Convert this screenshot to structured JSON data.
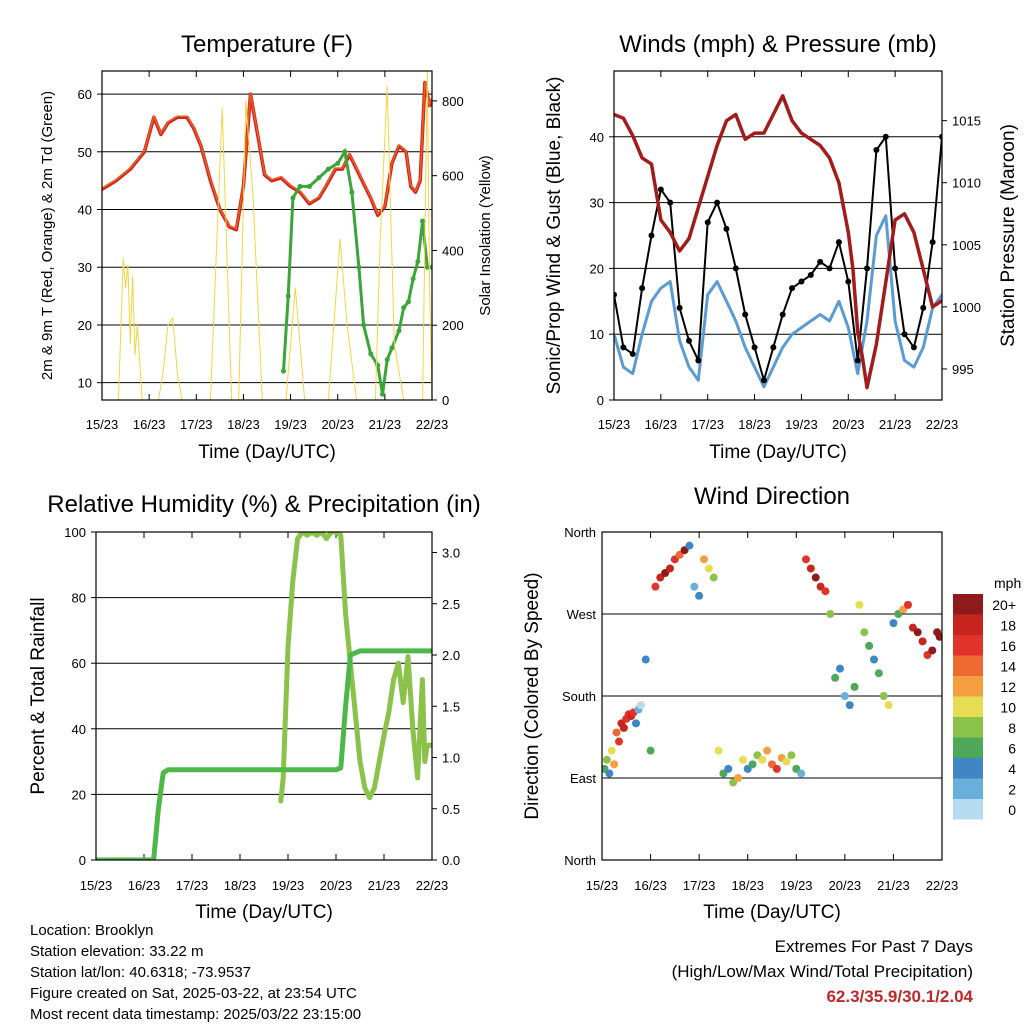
{
  "chart_data": [
    {
      "type": "line",
      "title": "Temperature (F)",
      "xlabel": "Time (Day/UTC)",
      "ylabel": "2m & 9m T (Red, Orange) & 2m Td (Green)",
      "ylabel_right": "Solar Insolation (Yellow)",
      "categories": [
        "15/23",
        "16/23",
        "17/23",
        "18/23",
        "19/23",
        "20/23",
        "21/23",
        "22/23"
      ],
      "yticks_left": [
        "10",
        "20",
        "30",
        "40",
        "50",
        "60"
      ],
      "yticks_right": [
        "0",
        "200",
        "400",
        "600",
        "800"
      ],
      "ylim": [
        7,
        64
      ],
      "ylim_right": [
        0,
        880
      ],
      "colors": {
        "temp2m": "#d62020",
        "temp9m": "#f08c1e",
        "dewpoint": "#3aa638",
        "solar": "#f5d442"
      },
      "series": [
        {
          "key": "temp2m",
          "x": [
            0,
            0.3,
            0.6,
            0.9,
            1.1,
            1.25,
            1.4,
            1.6,
            1.8,
            1.95,
            2.1,
            2.3,
            2.5,
            2.7,
            2.85,
            3,
            3.15,
            3.3,
            3.45,
            3.6,
            3.8,
            4,
            4.2,
            4.4,
            4.6,
            4.75,
            4.95,
            5.1,
            5.25,
            5.4,
            5.55,
            5.7,
            5.85,
            6,
            6.15,
            6.3,
            6.45,
            6.55,
            6.65,
            6.75,
            6.85,
            6.95,
            7
          ],
          "y": [
            43.5,
            45,
            47,
            50,
            56,
            53,
            55,
            56,
            56,
            54,
            51,
            45,
            40,
            37,
            36.5,
            44,
            60,
            53,
            46,
            45,
            45.5,
            44,
            43,
            41,
            42,
            44,
            47,
            47,
            49.5,
            47,
            44.5,
            42,
            39,
            40.5,
            48,
            51,
            50,
            44,
            43,
            45,
            62,
            58,
            59
          ]
        },
        {
          "key": "dewpoint",
          "x": [
            3.85,
            3.95,
            4.05,
            4.2,
            4.4,
            4.6,
            4.8,
            5,
            5.15,
            5.3,
            5.45,
            5.55,
            5.7,
            5.85,
            5.95,
            6.05,
            6.15,
            6.3,
            6.4,
            6.5,
            6.6,
            6.7,
            6.8,
            6.9,
            7
          ],
          "y": [
            12,
            25,
            42,
            44,
            44,
            45.5,
            47,
            48,
            50,
            43,
            30,
            20,
            15,
            13,
            8,
            14,
            16,
            19,
            23,
            24,
            28,
            31,
            38,
            30,
            30
          ]
        },
        {
          "key": "solar",
          "x": [
            0.35,
            0.45,
            0.5,
            0.55,
            0.6,
            0.65,
            0.7,
            0.75,
            0.85,
            1.2,
            1.3,
            1.4,
            1.5,
            1.6,
            1.7,
            2.3,
            2.55,
            2.75,
            2.9,
            3.05,
            3.2,
            3.4,
            3.9,
            4.1,
            4.3,
            4.5,
            4.8,
            5.05,
            5.2,
            5.4,
            5.8,
            5.9,
            6.05,
            6.2,
            6.4,
            6.8,
            6.9,
            6.95,
            7
          ],
          "y": [
            0,
            380,
            300,
            360,
            150,
            330,
            120,
            200,
            0,
            0,
            80,
            200,
            220,
            70,
            0,
            0,
            780,
            0,
            0,
            800,
            550,
            0,
            0,
            300,
            0,
            0,
            0,
            430,
            200,
            0,
            0,
            420,
            840,
            150,
            0,
            0,
            880,
            300,
            0
          ]
        }
      ]
    },
    {
      "type": "line",
      "title": "Winds (mph) & Pressure (mb)",
      "xlabel": "Time (Day/UTC)",
      "ylabel": "Sonic/Prop Wind & Gust (Blue, Black)",
      "ylabel_right": "Station Pressure (Maroon)",
      "categories": [
        "15/23",
        "16/23",
        "17/23",
        "18/23",
        "19/23",
        "20/23",
        "21/23",
        "22/23"
      ],
      "yticks_left": [
        "0",
        "10",
        "20",
        "30",
        "40"
      ],
      "yticks_right": [
        "995",
        "1000",
        "1005",
        "1010",
        "1015"
      ],
      "ylim": [
        0,
        50
      ],
      "ylim_right": [
        992.5,
        1019
      ],
      "colors": {
        "wind": "#5b9bd5",
        "gust": "#000000",
        "pressure": "#a31b1b"
      },
      "series": [
        {
          "key": "wind",
          "x": [
            0,
            0.2,
            0.4,
            0.6,
            0.8,
            1,
            1.2,
            1.4,
            1.6,
            1.8,
            2,
            2.2,
            2.4,
            2.6,
            2.8,
            3,
            3.2,
            3.4,
            3.6,
            3.8,
            4,
            4.2,
            4.4,
            4.6,
            4.8,
            5,
            5.2,
            5.4,
            5.6,
            5.8,
            6,
            6.2,
            6.4,
            6.6,
            6.8,
            7
          ],
          "y": [
            10,
            5,
            4,
            10,
            15,
            17,
            18,
            9,
            5,
            3,
            16,
            18,
            15,
            12,
            8,
            5,
            2,
            5,
            8,
            10,
            11,
            12,
            13,
            12,
            15,
            11,
            4,
            12,
            25,
            28,
            12,
            6,
            5,
            8,
            14,
            16
          ]
        },
        {
          "key": "gust",
          "x": [
            0,
            0.2,
            0.4,
            0.6,
            0.8,
            1,
            1.2,
            1.4,
            1.6,
            1.8,
            2,
            2.2,
            2.4,
            2.6,
            2.8,
            3,
            3.2,
            3.4,
            3.6,
            3.8,
            4,
            4.2,
            4.4,
            4.6,
            4.8,
            5,
            5.2,
            5.4,
            5.6,
            5.8,
            6,
            6.2,
            6.4,
            6.6,
            6.8,
            7
          ],
          "y": [
            16,
            8,
            7,
            17,
            25,
            32,
            30,
            14,
            9,
            6,
            27,
            30,
            26,
            20,
            13,
            8,
            3,
            8,
            13,
            17,
            18,
            19,
            21,
            20,
            24,
            18,
            6,
            20,
            38,
            40,
            20,
            10,
            8,
            14,
            24,
            40
          ]
        },
        {
          "key": "pressure",
          "x": [
            0,
            0.2,
            0.4,
            0.6,
            0.8,
            1,
            1.2,
            1.4,
            1.6,
            1.8,
            2,
            2.2,
            2.4,
            2.6,
            2.8,
            3,
            3.2,
            3.4,
            3.6,
            3.8,
            4,
            4.2,
            4.4,
            4.6,
            4.8,
            5,
            5.1,
            5.2,
            5.3,
            5.4,
            5.6,
            5.8,
            6,
            6.2,
            6.4,
            6.6,
            6.8,
            7
          ],
          "y": [
            1015.5,
            1015.2,
            1013.8,
            1012,
            1011.5,
            1007,
            1006,
            1004.5,
            1005.5,
            1008,
            1010.5,
            1013,
            1015,
            1015.5,
            1013.5,
            1014,
            1014,
            1015.5,
            1017,
            1015,
            1014,
            1013.5,
            1013,
            1012,
            1010,
            1006,
            1003,
            998,
            996,
            993.5,
            997,
            1002,
            1007,
            1007.5,
            1006,
            1003,
            1000,
            1000.5
          ]
        }
      ]
    },
    {
      "type": "line",
      "title": "Relative Humidity (%) & Precipitation (in)",
      "xlabel": "Time (Day/UTC)",
      "ylabel": "Percent & Total Rainfall",
      "categories": [
        "15/23",
        "16/23",
        "17/23",
        "18/23",
        "19/23",
        "20/23",
        "21/23",
        "22/23"
      ],
      "yticks_left": [
        "0",
        "20",
        "40",
        "60",
        "80",
        "100"
      ],
      "yticks_right": [
        "0.0",
        "0.5",
        "1.0",
        "1.5",
        "2.0",
        "2.5",
        "3.0"
      ],
      "ylim": [
        0,
        100
      ],
      "ylim_right": [
        0,
        3.2
      ],
      "colors": {
        "rh": "#8bc34a",
        "precip": "#4cb848"
      },
      "series": [
        {
          "key": "rh",
          "x": [
            3.85,
            3.9,
            4,
            4.1,
            4.2,
            4.3,
            4.4,
            4.5,
            4.6,
            4.7,
            4.8,
            4.9,
            5,
            5.1,
            5.2,
            5.3,
            5.4,
            5.5,
            5.6,
            5.7,
            5.8,
            5.9,
            6,
            6.1,
            6.2,
            6.3,
            6.4,
            6.5,
            6.6,
            6.7,
            6.8,
            6.85,
            6.9,
            7
          ],
          "y": [
            18,
            25,
            65,
            85,
            98,
            100,
            99,
            100,
            99,
            100,
            98,
            100,
            100,
            99,
            75,
            60,
            45,
            30,
            22,
            19,
            22,
            30,
            38,
            45,
            55,
            60,
            48,
            62,
            40,
            25,
            55,
            30,
            35,
            35
          ]
        },
        {
          "key": "precip",
          "x": [
            0,
            1.0,
            1.2,
            1.3,
            1.4,
            1.5,
            1.8,
            2,
            2.5,
            3,
            3.5,
            4,
            4.5,
            5,
            5.1,
            5.2,
            5.3,
            5.5,
            6,
            6.5,
            7
          ],
          "y": [
            0,
            0,
            0,
            0.5,
            0.85,
            0.88,
            0.88,
            0.88,
            0.88,
            0.88,
            0.88,
            0.88,
            0.88,
            0.88,
            0.9,
            1.5,
            2.0,
            2.04,
            2.04,
            2.04,
            2.04
          ]
        }
      ]
    },
    {
      "type": "scatter",
      "title": "Wind Direction",
      "xlabel": "Time (Day/UTC)",
      "ylabel": "Direction (Colored By Speed)",
      "categories": [
        "15/23",
        "16/23",
        "17/23",
        "18/23",
        "19/23",
        "20/23",
        "21/23",
        "22/23"
      ],
      "yticks": [
        "North",
        "East",
        "South",
        "West",
        "North"
      ],
      "ylim": [
        0,
        360
      ],
      "legend_title": "mph",
      "legend_labels": [
        "20+",
        "18",
        "16",
        "14",
        "12",
        "10",
        "8",
        "6",
        "4",
        "2",
        "0"
      ],
      "legend_colors": [
        "#8e1b1b",
        "#c9251f",
        "#e2332b",
        "#ef6a32",
        "#f5a040",
        "#e8dc55",
        "#8bc34a",
        "#4ea85a",
        "#3f86c4",
        "#6aafdc",
        "#b7dcf2"
      ],
      "series": [
        {
          "name": "direction",
          "x": [
            0.05,
            0.1,
            0.15,
            0.2,
            0.25,
            0.3,
            0.35,
            0.4,
            0.45,
            0.5,
            0.55,
            0.6,
            0.65,
            0.7,
            0.75,
            0.8,
            0.9,
            1,
            1.1,
            1.2,
            1.3,
            1.4,
            1.5,
            1.6,
            1.7,
            1.8,
            1.9,
            2,
            2.1,
            2.2,
            2.3,
            2.4,
            2.5,
            2.6,
            2.7,
            2.8,
            2.9,
            3,
            3.1,
            3.2,
            3.3,
            3.4,
            3.5,
            3.6,
            3.7,
            3.8,
            3.9,
            4,
            4.1,
            4.2,
            4.3,
            4.4,
            4.5,
            4.6,
            4.7,
            4.8,
            4.9,
            5,
            5.1,
            5.2,
            5.3,
            5.4,
            5.5,
            5.6,
            5.7,
            5.8,
            5.9,
            6,
            6.1,
            6.2,
            6.3,
            6.4,
            6.5,
            6.6,
            6.7,
            6.8,
            6.9,
            6.95
          ],
          "y": [
            100,
            110,
            95,
            120,
            105,
            140,
            130,
            150,
            145,
            155,
            160,
            158,
            162,
            150,
            165,
            170,
            220,
            120,
            300,
            310,
            315,
            320,
            330,
            335,
            340,
            345,
            300,
            290,
            330,
            320,
            310,
            120,
            95,
            100,
            85,
            90,
            110,
            100,
            105,
            115,
            110,
            120,
            105,
            100,
            112,
            108,
            115,
            100,
            95,
            330,
            320,
            310,
            300,
            295,
            270,
            200,
            210,
            180,
            170,
            190,
            280,
            250,
            235,
            220,
            205,
            180,
            170,
            260,
            270,
            275,
            280,
            255,
            250,
            240,
            225,
            230,
            250,
            245
          ],
          "speed": [
            6,
            8,
            4,
            10,
            12,
            14,
            16,
            18,
            17,
            16,
            15,
            18,
            16,
            4,
            2,
            0,
            4,
            6,
            16,
            18,
            20,
            18,
            16,
            14,
            20,
            4,
            2,
            4,
            12,
            10,
            8,
            10,
            6,
            4,
            8,
            12,
            10,
            4,
            6,
            8,
            10,
            12,
            14,
            16,
            12,
            10,
            8,
            6,
            2,
            16,
            18,
            20,
            18,
            16,
            8,
            6,
            4,
            2,
            4,
            6,
            10,
            8,
            6,
            4,
            6,
            8,
            10,
            4,
            6,
            12,
            16,
            18,
            20,
            18,
            16,
            20,
            20,
            20
          ]
        }
      ]
    }
  ],
  "info": {
    "location": "Location: Brooklyn",
    "elevation": "Station elevation: 33.22 m",
    "latlon": "Station lat/lon: 40.6318; -73.9537",
    "created": "Figure created on Sat, 2025-03-22, at 23:54 UTC",
    "recent": "Most recent data timestamp: 2025/03/22 23:15:00"
  },
  "extremes": {
    "title": "Extremes For Past 7 Days",
    "subtitle": "(High/Low/Max Wind/Total Precipitation)",
    "values": "62.3/35.9/30.1/2.04"
  }
}
